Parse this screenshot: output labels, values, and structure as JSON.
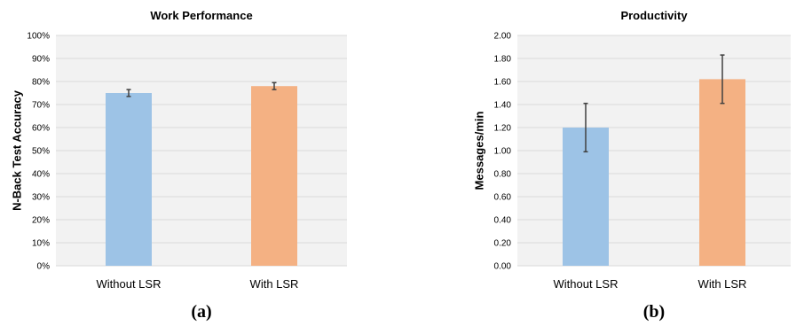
{
  "chart_data": [
    {
      "type": "bar",
      "title": "Work Performance",
      "ylabel": "N-Back Test Accuracy",
      "xlabel": "",
      "categories": [
        "Without LSR",
        "With LSR"
      ],
      "values": [
        75,
        78
      ],
      "errors": [
        1.5,
        1.5
      ],
      "ylim": [
        0,
        100
      ],
      "yticks": [
        "0%",
        "10%",
        "20%",
        "30%",
        "40%",
        "50%",
        "60%",
        "70%",
        "80%",
        "90%",
        "100%"
      ],
      "grid": true,
      "panel_label": "(a)",
      "colors": [
        "#9dc3e6",
        "#f4b183"
      ],
      "plot_bg": "#f2f2f2"
    },
    {
      "type": "bar",
      "title": "Productivity",
      "ylabel": "Messages/min",
      "xlabel": "",
      "categories": [
        "Without LSR",
        "With LSR"
      ],
      "values": [
        1.2,
        1.62
      ],
      "errors": [
        0.21,
        0.21
      ],
      "ylim": [
        0,
        2
      ],
      "yticks": [
        "0.00",
        "0.20",
        "0.40",
        "0.60",
        "0.80",
        "1.00",
        "1.20",
        "1.40",
        "1.60",
        "1.80",
        "2.00"
      ],
      "grid": true,
      "panel_label": "(b)",
      "colors": [
        "#9dc3e6",
        "#f4b183"
      ],
      "plot_bg": "#f2f2f2"
    }
  ]
}
